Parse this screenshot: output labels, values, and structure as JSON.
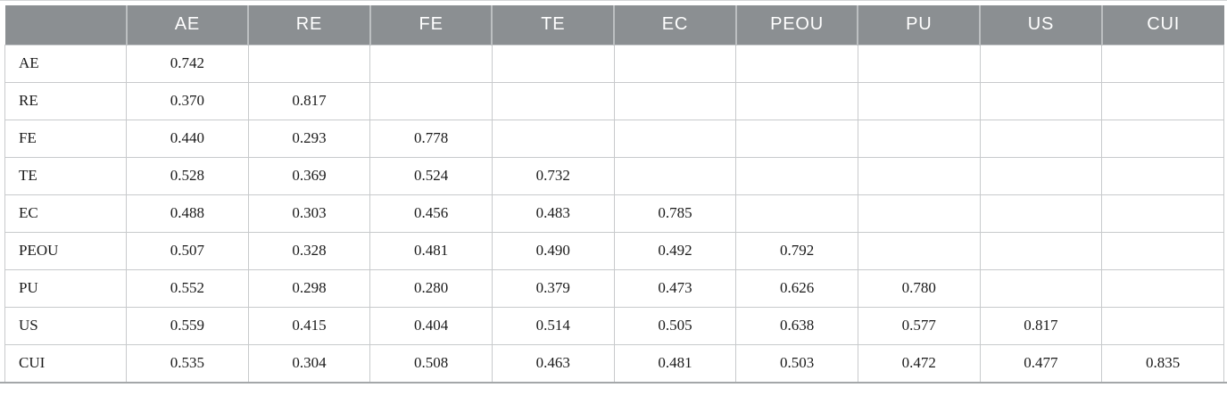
{
  "colors": {
    "header_bg": "#8b8f92",
    "header_text": "#ffffff",
    "header_divider": "#bcbfc1",
    "grid_line": "#c8cacc",
    "bottom_rule": "#a4a7a9",
    "top_rule": "#d3d5d6",
    "body_text": "#1a1a1a",
    "page_bg": "#ffffff"
  },
  "table": {
    "columns": [
      "",
      "AE",
      "RE",
      "FE",
      "TE",
      "EC",
      "PEOU",
      "PU",
      "US",
      "CUI"
    ],
    "rows": [
      {
        "label": "AE",
        "values": [
          "0.742",
          "",
          "",
          "",
          "",
          "",
          "",
          "",
          ""
        ]
      },
      {
        "label": "RE",
        "values": [
          "0.370",
          "0.817",
          "",
          "",
          "",
          "",
          "",
          "",
          ""
        ]
      },
      {
        "label": "FE",
        "values": [
          "0.440",
          "0.293",
          "0.778",
          "",
          "",
          "",
          "",
          "",
          ""
        ]
      },
      {
        "label": "TE",
        "values": [
          "0.528",
          "0.369",
          "0.524",
          "0.732",
          "",
          "",
          "",
          "",
          ""
        ]
      },
      {
        "label": "EC",
        "values": [
          "0.488",
          "0.303",
          "0.456",
          "0.483",
          "0.785",
          "",
          "",
          "",
          ""
        ]
      },
      {
        "label": "PEOU",
        "values": [
          "0.507",
          "0.328",
          "0.481",
          "0.490",
          "0.492",
          "0.792",
          "",
          "",
          ""
        ]
      },
      {
        "label": "PU",
        "values": [
          "0.552",
          "0.298",
          "0.280",
          "0.379",
          "0.473",
          "0.626",
          "0.780",
          "",
          ""
        ]
      },
      {
        "label": "US",
        "values": [
          "0.559",
          "0.415",
          "0.404",
          "0.514",
          "0.505",
          "0.638",
          "0.577",
          "0.817",
          ""
        ]
      },
      {
        "label": "CUI",
        "values": [
          "0.535",
          "0.304",
          "0.508",
          "0.463",
          "0.481",
          "0.503",
          "0.472",
          "0.477",
          "0.835"
        ]
      }
    ]
  }
}
